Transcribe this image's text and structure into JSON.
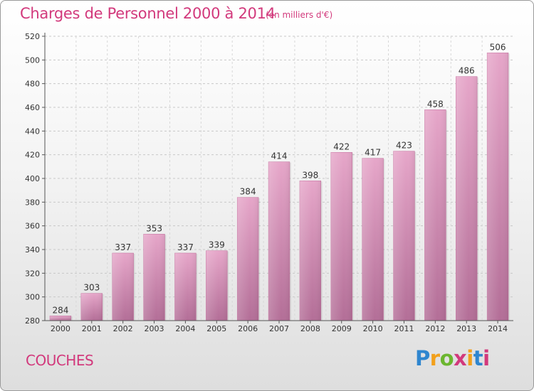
{
  "chart_data": {
    "type": "bar",
    "title": "Charges de Personnel 2000 à 2014",
    "subtitle": "(en milliers d'€)",
    "categories": [
      "2000",
      "2001",
      "2002",
      "2003",
      "2004",
      "2005",
      "2006",
      "2007",
      "2008",
      "2009",
      "2010",
      "2011",
      "2012",
      "2013",
      "2014"
    ],
    "values": [
      284,
      303,
      337,
      353,
      337,
      339,
      384,
      414,
      398,
      422,
      417,
      423,
      458,
      486,
      506
    ],
    "xlabel": "",
    "ylabel": "",
    "ylim": [
      280,
      520
    ],
    "yticks": [
      280,
      300,
      320,
      340,
      360,
      380,
      400,
      420,
      440,
      460,
      480,
      500,
      520
    ],
    "grid": true,
    "bar_color": "#d27ba8",
    "title_color": "#d2397c"
  },
  "commune": "COUCHES",
  "logo": {
    "letters": [
      "P",
      "r",
      "o",
      "x",
      "i",
      "t",
      "i"
    ],
    "colors": [
      "#2f86cf",
      "#f2a01b",
      "#6bb62f",
      "#d2397c",
      "#f2a01b",
      "#2f86cf",
      "#d2397c"
    ]
  }
}
